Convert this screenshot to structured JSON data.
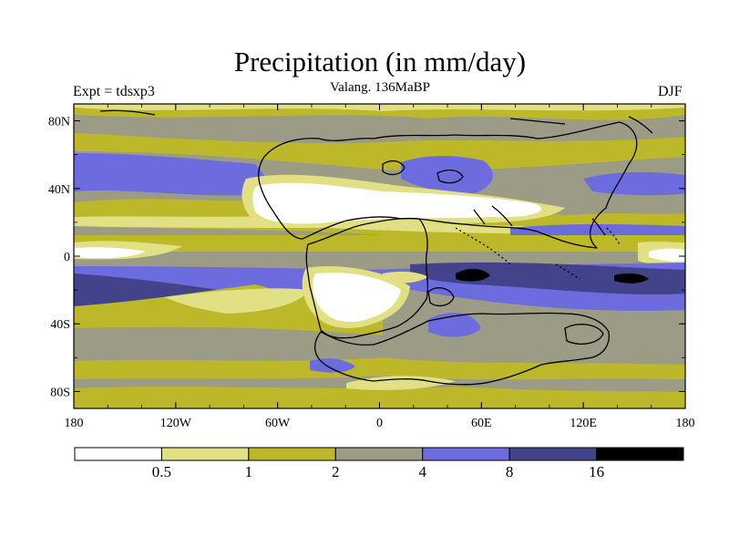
{
  "title": "Precipitation (in mm/day)",
  "subtitle": "Valang. 136MaBP",
  "left_label": "Expt = tdsxp3",
  "right_label": "DJF",
  "colors": {
    "band0": "#ffffff",
    "band1": "#e2e085",
    "band2": "#bcb829",
    "band3": "#9b9b86",
    "band4": "#6c6cdf",
    "band5": "#43438c",
    "band6": "#000000"
  },
  "chart_data": {
    "type": "heatmap",
    "title": "Precipitation (in mm/day)",
    "subtitle": "Valang. 136MaBP",
    "units": "mm/day",
    "x_range": [
      -180,
      180
    ],
    "y_range": [
      -90,
      90
    ],
    "x_ticks": [
      {
        "value": -180,
        "label": "180"
      },
      {
        "value": -120,
        "label": "120W"
      },
      {
        "value": -60,
        "label": "60W"
      },
      {
        "value": 0,
        "label": "0"
      },
      {
        "value": 60,
        "label": "60E"
      },
      {
        "value": 120,
        "label": "120E"
      },
      {
        "value": 180,
        "label": "180"
      }
    ],
    "y_ticks": [
      {
        "value": 80,
        "label": "80N"
      },
      {
        "value": 40,
        "label": "40N"
      },
      {
        "value": 0,
        "label": "0"
      },
      {
        "value": -40,
        "label": "40S"
      },
      {
        "value": -80,
        "label": "80S"
      }
    ],
    "colorbar": {
      "levels": [
        0.5,
        1,
        2,
        4,
        8,
        16
      ],
      "labels": [
        "0.5",
        "1",
        "2",
        "4",
        "8",
        "16"
      ]
    }
  }
}
